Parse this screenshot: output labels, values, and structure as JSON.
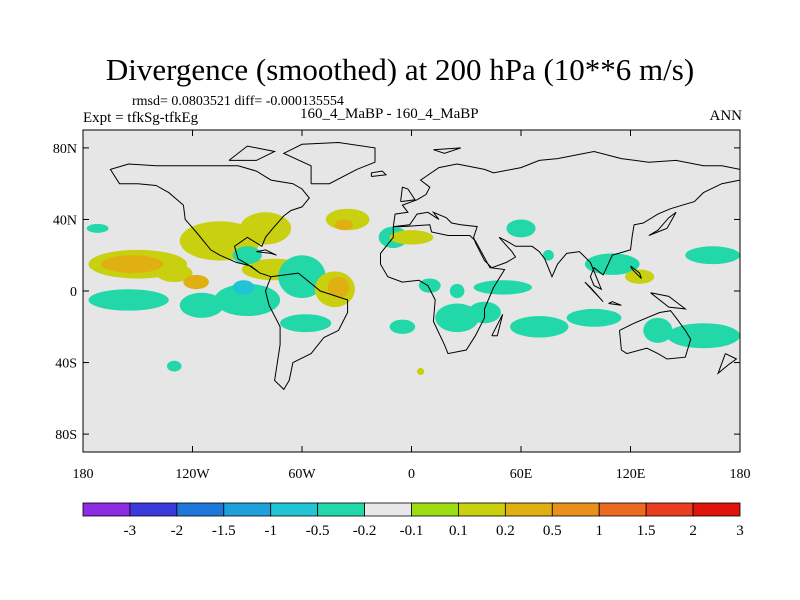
{
  "chart_data": {
    "type": "heatmap",
    "title": "Divergence (smoothed) at 200 hPa (10**6 m/s)",
    "stats_line": "rmsd= 0.0803521 diff= -0.000135554",
    "expt_label": "Expt = tfkSg-tfkEg",
    "center_label": "160_4_MaBP - 160_4_MaBP",
    "season_label": "ANN",
    "x_ticks": [
      {
        "value": -180,
        "label": "180"
      },
      {
        "value": -120,
        "label": "120W"
      },
      {
        "value": -60,
        "label": "60W"
      },
      {
        "value": 0,
        "label": "0"
      },
      {
        "value": 60,
        "label": "60E"
      },
      {
        "value": 120,
        "label": "120E"
      },
      {
        "value": 180,
        "label": "180"
      }
    ],
    "y_ticks": [
      {
        "value": 80,
        "label": "80N"
      },
      {
        "value": 40,
        "label": "40N"
      },
      {
        "value": 0,
        "label": "0"
      },
      {
        "value": -40,
        "label": "40S"
      },
      {
        "value": -80,
        "label": "80S"
      }
    ],
    "xlim": [
      -180,
      180
    ],
    "ylim": [
      -90,
      90
    ],
    "colorbar": {
      "colors": [
        "#8b2be2",
        "#3b3bdc",
        "#1e78dc",
        "#1ea0dc",
        "#20c4d4",
        "#22d8a8",
        "#e8e8e8",
        "#9edc14",
        "#c8d010",
        "#e0b012",
        "#e8901a",
        "#ec6a1e",
        "#e83e1e",
        "#e0140c"
      ],
      "labels": [
        "-3",
        "-2",
        "-1.5",
        "-1",
        "-0.5",
        "-0.2",
        "-0.1",
        "0.1",
        "0.2",
        "0.5",
        "1",
        "1.5",
        "2",
        "3"
      ]
    },
    "features": [
      {
        "lon": -172,
        "lat": 35,
        "rx": 6,
        "ry": 2.5,
        "level": "-0.2"
      },
      {
        "lon": -150,
        "lat": 15,
        "rx": 27,
        "ry": 8,
        "level": "0.2"
      },
      {
        "lon": -153,
        "lat": 15,
        "rx": 17,
        "ry": 5,
        "level": "0.5"
      },
      {
        "lon": -130,
        "lat": 10,
        "rx": 10,
        "ry": 5,
        "level": "0.2"
      },
      {
        "lon": -118,
        "lat": 5,
        "rx": 7,
        "ry": 4,
        "level": "0.5"
      },
      {
        "lon": -105,
        "lat": 28,
        "rx": 22,
        "ry": 11,
        "level": "0.2"
      },
      {
        "lon": -80,
        "lat": 35,
        "rx": 14,
        "ry": 9,
        "level": "0.2"
      },
      {
        "lon": -75,
        "lat": 12,
        "rx": 18,
        "ry": 6,
        "level": "0.2"
      },
      {
        "lon": -90,
        "lat": 20,
        "rx": 8,
        "ry": 5,
        "level": "-0.2"
      },
      {
        "lon": -155,
        "lat": -5,
        "rx": 22,
        "ry": 6,
        "level": "-0.2"
      },
      {
        "lon": -115,
        "lat": -8,
        "rx": 12,
        "ry": 7,
        "level": "-0.2"
      },
      {
        "lon": -90,
        "lat": -5,
        "rx": 18,
        "ry": 9,
        "level": "-0.2"
      },
      {
        "lon": -92,
        "lat": 2,
        "rx": 6,
        "ry": 4,
        "level": "-0.5"
      },
      {
        "lon": -60,
        "lat": 8,
        "rx": 13,
        "ry": 12,
        "level": "-0.2"
      },
      {
        "lon": -42,
        "lat": 1,
        "rx": 11,
        "ry": 10,
        "level": "0.2"
      },
      {
        "lon": -40,
        "lat": 2,
        "rx": 6,
        "ry": 6,
        "level": "0.5"
      },
      {
        "lon": -58,
        "lat": -18,
        "rx": 14,
        "ry": 5,
        "level": "-0.2"
      },
      {
        "lon": -35,
        "lat": 40,
        "rx": 12,
        "ry": 6,
        "level": "0.2"
      },
      {
        "lon": -37,
        "lat": 37,
        "rx": 5,
        "ry": 3,
        "level": "0.5"
      },
      {
        "lon": -10,
        "lat": 30,
        "rx": 8,
        "ry": 6,
        "level": "-0.2"
      },
      {
        "lon": 0,
        "lat": 30,
        "rx": 12,
        "ry": 4,
        "level": "0.2"
      },
      {
        "lon": 10,
        "lat": 3,
        "rx": 6,
        "ry": 4,
        "level": "-0.2"
      },
      {
        "lon": 25,
        "lat": 0,
        "rx": 4,
        "ry": 4,
        "level": "-0.2"
      },
      {
        "lon": 50,
        "lat": 2,
        "rx": 16,
        "ry": 4,
        "level": "-0.2"
      },
      {
        "lon": 75,
        "lat": 20,
        "rx": 3,
        "ry": 3,
        "level": "-0.2"
      },
      {
        "lon": 110,
        "lat": 15,
        "rx": 15,
        "ry": 6,
        "level": "-0.2"
      },
      {
        "lon": 125,
        "lat": 8,
        "rx": 8,
        "ry": 4,
        "level": "0.2"
      },
      {
        "lon": 165,
        "lat": 20,
        "rx": 15,
        "ry": 5,
        "level": "-0.2"
      },
      {
        "lon": 60,
        "lat": 35,
        "rx": 8,
        "ry": 5,
        "level": "-0.2"
      },
      {
        "lon": 25,
        "lat": -15,
        "rx": 12,
        "ry": 8,
        "level": "-0.2"
      },
      {
        "lon": 40,
        "lat": -12,
        "rx": 9,
        "ry": 6,
        "level": "-0.2"
      },
      {
        "lon": 70,
        "lat": -20,
        "rx": 16,
        "ry": 6,
        "level": "-0.2"
      },
      {
        "lon": 100,
        "lat": -15,
        "rx": 15,
        "ry": 5,
        "level": "-0.2"
      },
      {
        "lon": 135,
        "lat": -22,
        "rx": 8,
        "ry": 7,
        "level": "-0.2"
      },
      {
        "lon": 160,
        "lat": -25,
        "rx": 20,
        "ry": 7,
        "level": "-0.2"
      },
      {
        "lon": -5,
        "lat": -20,
        "rx": 7,
        "ry": 4,
        "level": "-0.2"
      },
      {
        "lon": -130,
        "lat": -42,
        "rx": 4,
        "ry": 3,
        "level": "-0.2"
      },
      {
        "lon": 5,
        "lat": -45,
        "rx": 2,
        "ry": 2,
        "level": "0.2"
      }
    ],
    "coastlines": [
      [
        [
          -62,
          10
        ],
        [
          -50,
          0
        ],
        [
          -35,
          -5
        ],
        [
          -35,
          -12
        ],
        [
          -40,
          -22
        ],
        [
          -48,
          -26
        ],
        [
          -55,
          -35
        ],
        [
          -65,
          -40
        ],
        [
          -67,
          -50
        ],
        [
          -70,
          -55
        ],
        [
          -75,
          -50
        ],
        [
          -72,
          -30
        ],
        [
          -72,
          -20
        ],
        [
          -78,
          -8
        ],
        [
          -80,
          0
        ],
        [
          -77,
          8
        ],
        [
          -62,
          10
        ]
      ],
      [
        [
          -77,
          8
        ],
        [
          -83,
          10
        ],
        [
          -90,
          15
        ],
        [
          -95,
          18
        ],
        [
          -97,
          25
        ],
        [
          -90,
          30
        ],
        [
          -82,
          25
        ],
        [
          -80,
          30
        ],
        [
          -76,
          35
        ],
        [
          -70,
          42
        ],
        [
          -66,
          45
        ],
        [
          -60,
          47
        ],
        [
          -56,
          52
        ],
        [
          -60,
          57
        ],
        [
          -65,
          60
        ],
        [
          -77,
          62
        ],
        [
          -85,
          67
        ],
        [
          -95,
          70
        ],
        [
          -110,
          70
        ],
        [
          -125,
          70
        ],
        [
          -140,
          70
        ],
        [
          -155,
          71
        ],
        [
          -165,
          68
        ],
        [
          -160,
          60
        ],
        [
          -150,
          60
        ],
        [
          -140,
          59
        ],
        [
          -133,
          55
        ],
        [
          -125,
          48
        ],
        [
          -124,
          40
        ],
        [
          -118,
          33
        ],
        [
          -110,
          23
        ],
        [
          -105,
          20
        ],
        [
          -96,
          16
        ],
        [
          -88,
          14
        ],
        [
          -83,
          10
        ],
        [
          -77,
          8
        ]
      ],
      [
        [
          -55,
          60
        ],
        [
          -45,
          60
        ],
        [
          -30,
          68
        ],
        [
          -20,
          72
        ],
        [
          -20,
          80
        ],
        [
          -40,
          83
        ],
        [
          -60,
          82
        ],
        [
          -70,
          77
        ],
        [
          -55,
          70
        ],
        [
          -55,
          60
        ]
      ],
      [
        [
          -10,
          36
        ],
        [
          -5,
          36
        ],
        [
          10,
          37
        ],
        [
          11,
          33
        ],
        [
          20,
          31
        ],
        [
          32,
          31
        ],
        [
          35,
          28
        ],
        [
          43,
          13
        ],
        [
          51,
          12
        ],
        [
          45,
          2
        ],
        [
          40,
          -10
        ],
        [
          40,
          -15
        ],
        [
          35,
          -25
        ],
        [
          30,
          -33
        ],
        [
          20,
          -35
        ],
        [
          18,
          -30
        ],
        [
          12,
          -17
        ],
        [
          13,
          -5
        ],
        [
          9,
          3
        ],
        [
          4,
          6
        ],
        [
          -5,
          5
        ],
        [
          -13,
          8
        ],
        [
          -17,
          15
        ],
        [
          -17,
          21
        ],
        [
          -10,
          30
        ],
        [
          -10,
          36
        ]
      ],
      [
        [
          -10,
          36
        ],
        [
          -9,
          43
        ],
        [
          -2,
          44
        ],
        [
          -5,
          48
        ],
        [
          3,
          51
        ],
        [
          8,
          54
        ],
        [
          10,
          58
        ],
        [
          5,
          62
        ],
        [
          15,
          69
        ],
        [
          25,
          71
        ],
        [
          40,
          68
        ],
        [
          45,
          66
        ],
        [
          60,
          69
        ],
        [
          70,
          73
        ],
        [
          80,
          74
        ],
        [
          100,
          78
        ],
        [
          115,
          74
        ],
        [
          130,
          72
        ],
        [
          145,
          73
        ],
        [
          160,
          70
        ],
        [
          170,
          70
        ],
        [
          180,
          68
        ],
        [
          180,
          62
        ],
        [
          170,
          60
        ],
        [
          160,
          55
        ],
        [
          155,
          50
        ],
        [
          142,
          46
        ],
        [
          135,
          43
        ],
        [
          127,
          38
        ],
        [
          122,
          37
        ],
        [
          121,
          31
        ],
        [
          120,
          23
        ],
        [
          110,
          20
        ],
        [
          106,
          11
        ],
        [
          105,
          9
        ],
        [
          100,
          13
        ],
        [
          98,
          8
        ],
        [
          100,
          3
        ],
        [
          104,
          1
        ],
        [
          98,
          16
        ],
        [
          92,
          22
        ],
        [
          85,
          21
        ],
        [
          80,
          15
        ],
        [
          77,
          8
        ],
        [
          73,
          18
        ],
        [
          70,
          22
        ],
        [
          66,
          25
        ],
        [
          57,
          25
        ],
        [
          52,
          28
        ],
        [
          48,
          30
        ],
        [
          55,
          22
        ],
        [
          57,
          19
        ],
        [
          52,
          16
        ],
        [
          44,
          13
        ],
        [
          40,
          17
        ],
        [
          35,
          27
        ],
        [
          34,
          30
        ],
        [
          36,
          36
        ],
        [
          27,
          37
        ],
        [
          22,
          38
        ],
        [
          19,
          41
        ],
        [
          12,
          44
        ],
        [
          15,
          40
        ],
        [
          9,
          44
        ],
        [
          3,
          43
        ],
        [
          -1,
          37
        ],
        [
          -10,
          36
        ]
      ],
      [
        [
          114,
          -22
        ],
        [
          122,
          -18
        ],
        [
          129,
          -15
        ],
        [
          136,
          -12
        ],
        [
          142,
          -11
        ],
        [
          145,
          -15
        ],
        [
          150,
          -22
        ],
        [
          153,
          -27
        ],
        [
          150,
          -37
        ],
        [
          140,
          -38
        ],
        [
          135,
          -35
        ],
        [
          129,
          -32
        ],
        [
          118,
          -35
        ],
        [
          115,
          -33
        ],
        [
          114,
          -22
        ]
      ],
      [
        [
          44,
          -25
        ],
        [
          49,
          -15
        ],
        [
          50,
          -13
        ],
        [
          47,
          -25
        ],
        [
          44,
          -25
        ]
      ],
      [
        [
          -6,
          50
        ],
        [
          2,
          51
        ],
        [
          -2,
          57
        ],
        [
          -5,
          58
        ],
        [
          -6,
          50
        ]
      ],
      [
        [
          130,
          31
        ],
        [
          135,
          34
        ],
        [
          141,
          41
        ],
        [
          145,
          44
        ],
        [
          140,
          35
        ],
        [
          130,
          31
        ]
      ],
      [
        [
          95,
          5
        ],
        [
          105,
          -6
        ],
        [
          98,
          2
        ],
        [
          95,
          5
        ]
      ],
      [
        [
          108,
          -7
        ],
        [
          115,
          -8
        ],
        [
          110,
          -6
        ],
        [
          108,
          -7
        ]
      ],
      [
        [
          131,
          -1
        ],
        [
          141,
          -3
        ],
        [
          150,
          -10
        ],
        [
          141,
          -9
        ],
        [
          131,
          -1
        ]
      ],
      [
        [
          172,
          -35
        ],
        [
          178,
          -38
        ],
        [
          174,
          -41
        ],
        [
          168,
          -46
        ],
        [
          172,
          -35
        ]
      ],
      [
        [
          -85,
          22
        ],
        [
          -77,
          21
        ],
        [
          -74,
          20
        ],
        [
          -80,
          23
        ],
        [
          -85,
          22
        ]
      ],
      [
        [
          -22,
          64
        ],
        [
          -14,
          65
        ],
        [
          -16,
          67
        ],
        [
          -22,
          66
        ],
        [
          -22,
          64
        ]
      ],
      [
        [
          12,
          79
        ],
        [
          27,
          80
        ],
        [
          18,
          77
        ],
        [
          12,
          79
        ]
      ],
      [
        [
          -100,
          73
        ],
        [
          -85,
          73
        ],
        [
          -75,
          78
        ],
        [
          -90,
          81
        ],
        [
          -100,
          73
        ]
      ],
      [
        [
          120,
          14
        ],
        [
          125,
          10
        ],
        [
          126,
          7
        ],
        [
          121,
          12
        ],
        [
          120,
          14
        ]
      ]
    ]
  }
}
